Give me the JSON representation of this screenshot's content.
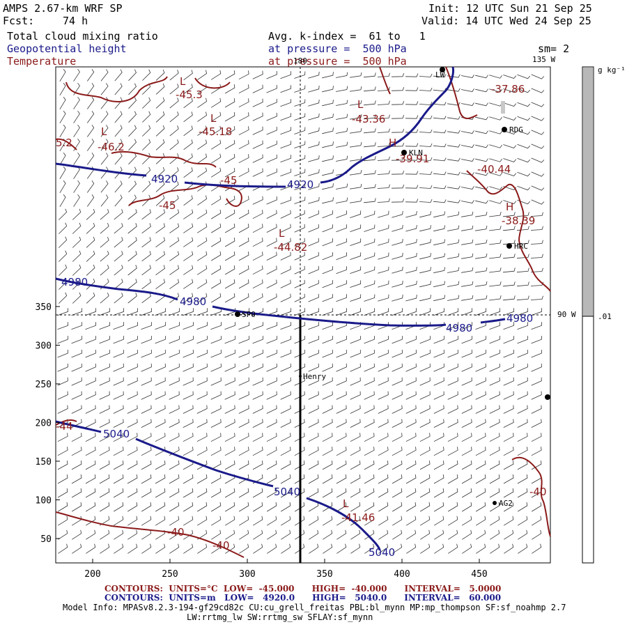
{
  "header": {
    "model": "AMPS 2.67-km WRF SP",
    "forecast_label": "Fcst:",
    "forecast_hours": "74 h",
    "init": "Init: 12 UTC Sun 21 Sep 25",
    "valid": "Valid: 14 UTC Wed 24 Sep 25",
    "field1": "Total cloud mixing ratio",
    "field2": "Geopotential height",
    "field3": "Temperature",
    "avg": "Avg. k-index =  61 to   1",
    "pressure1": "at pressure =  500 hPa",
    "pressure2": "at pressure =  500 hPa",
    "smoothing": "sm= 2"
  },
  "map": {
    "x_ticks": [
      "200",
      "250",
      "300",
      "350",
      "400",
      "450"
    ],
    "y_ticks": [
      "50",
      "100",
      "150",
      "200",
      "250",
      "300",
      "350"
    ],
    "meridian_labels": {
      "top": "180",
      "right_top": "135 W",
      "right_mid": "90 W"
    },
    "height_labels": [
      "4920",
      "4920",
      "4980",
      "4980",
      "4980",
      "4980",
      "5040",
      "5040",
      "5040"
    ],
    "temperature_labels": [
      "-45.3",
      "-45.18",
      "-46.2",
      "-45",
      "-45",
      "-43.36",
      "-39.91",
      "-37.86",
      "-40.44",
      "-38.39",
      "-44.82",
      "-41.46",
      "-40",
      "-40",
      "-40",
      "-44",
      "5.2"
    ],
    "pressure_centers": [
      "L",
      "L",
      "L",
      "L",
      "H",
      "H",
      "L",
      "L"
    ],
    "stations": [
      "KLN",
      "RDG",
      "HRC",
      "Henry",
      "AG2",
      "LW",
      "SPO"
    ],
    "colorbar": {
      "unit": "g kg⁻¹",
      "tick": ".01"
    }
  },
  "footer": {
    "temp_contours": "CONTOURS:  UNITS=°C  LOW=  -45.000      HIGH=  -40.000      INTERVAL=   5.0000",
    "height_contours": "CONTOURS:  UNITS=m   LOW=   4920.0      HIGH=   5040.0      INTERVAL=   60.000",
    "model_info_1": "Model Info: MPASv8.2.3-194-gf29cd82c CU:cu_grell_freitas PBL:bl_mynn MP:mp_thompson SF:sf_noahmp 2.7",
    "model_info_2": "LW:rrtmg_lw SW:rrtmg_sw SFLAY:sf_mynn"
  },
  "colors": {
    "height": "#1a1a8a",
    "temperature": "#8b1a1a",
    "cloud": "#b8b8b8",
    "footer_temp": "#8b1a1a",
    "footer_height": "#1a1a8a"
  }
}
